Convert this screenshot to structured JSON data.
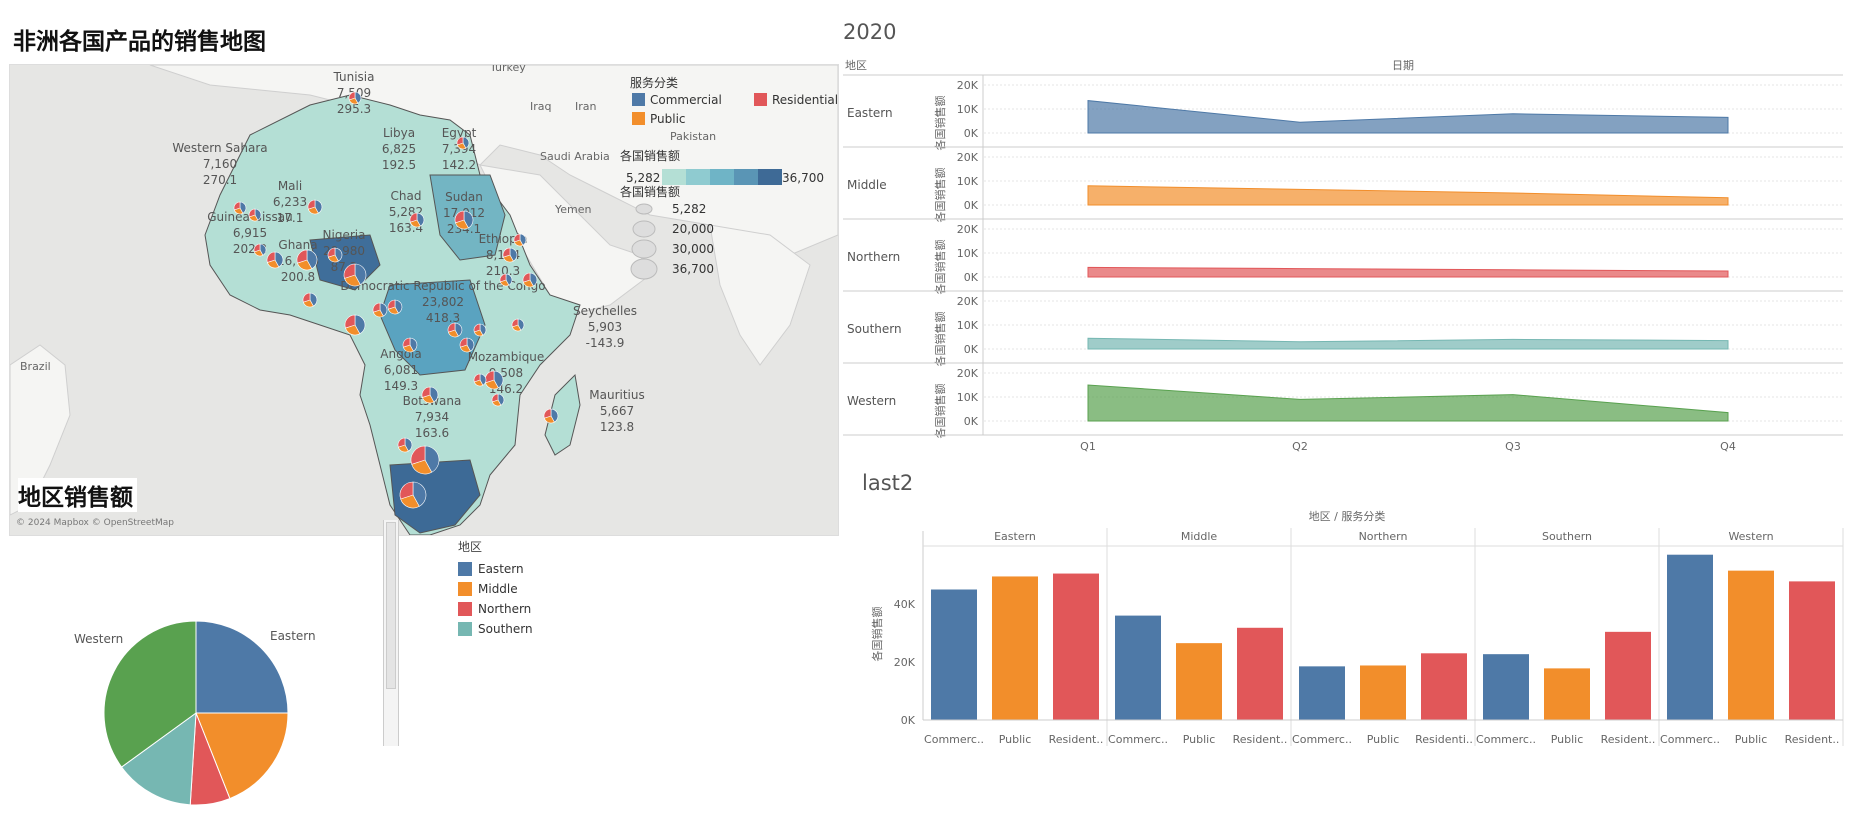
{
  "map_title": "非洲各国产品的销售地图",
  "map": {
    "sea_labels": [
      "Turkey",
      "Iraq",
      "Iran",
      "Saudi Arabia",
      "Yemen",
      "Pakistan",
      "Brazil"
    ],
    "country_labels": [
      {
        "name": "Tunisia",
        "sales": "7,509",
        "profit": "295.3"
      },
      {
        "name": "Libya",
        "sales": "6,825",
        "profit": "192.5"
      },
      {
        "name": "Egypt",
        "sales": "7,394",
        "profit": "142.2"
      },
      {
        "name": "Western Sahara",
        "sales": "7,160",
        "profit": "270.1"
      },
      {
        "name": "Mali",
        "sales": "6,233",
        "profit": "17.1"
      },
      {
        "name": "Chad",
        "sales": "5,282",
        "profit": "163.4"
      },
      {
        "name": "Sudan",
        "sales": "17,012",
        "profit": "234.1"
      },
      {
        "name": "Guinea-Bissau",
        "sales": "6,915",
        "profit": "202.2"
      },
      {
        "name": "Nigeria",
        "sales": "29,980",
        "profit": "87.2"
      },
      {
        "name": "Ghana",
        "sales": "16,086",
        "profit": "200.8"
      },
      {
        "name": "Ethiopia",
        "sales": "8,194",
        "profit": "210.3"
      },
      {
        "name": "Democratic Republic of the Congo",
        "sales": "23,802",
        "profit": "418.3"
      },
      {
        "name": "Seychelles",
        "sales": "5,903",
        "profit": "-143.9"
      },
      {
        "name": "Angola",
        "sales": "6,081",
        "profit": "149.3"
      },
      {
        "name": "Mozambique",
        "sales": "9,508",
        "profit": "146.2"
      },
      {
        "name": "Mauritius",
        "sales": "5,667",
        "profit": "123.8"
      },
      {
        "name": "Botswana",
        "sales": "7,934",
        "profit": "163.6"
      }
    ],
    "legend_service_title": "服务分类",
    "legend_service": [
      {
        "name": "Commercial",
        "color": "#4e79a7"
      },
      {
        "name": "Residential",
        "color": "#e15759"
      },
      {
        "name": "Public",
        "color": "#f28e2b"
      }
    ],
    "legend_color_title": "各国销售额",
    "legend_color_min": "5,282",
    "legend_color_max": "36,700",
    "legend_size_title": "各国销售额",
    "legend_size": [
      "5,282",
      "20,000",
      "30,000",
      "36,700"
    ],
    "copyright": "© 2024 Mapbox © OpenStreetMap"
  },
  "pie_title": "地区销售额",
  "pie_legend_title": "地区",
  "pie_legend": [
    {
      "name": "Eastern",
      "color": "#4e79a7"
    },
    {
      "name": "Middle",
      "color": "#f28e2b"
    },
    {
      "name": "Northern",
      "color": "#e15759"
    },
    {
      "name": "Southern",
      "color": "#76b7b2"
    }
  ],
  "area_title": "2020",
  "area_header_left": "地区",
  "area_header_top": "日期",
  "bar_title": "last2",
  "bar_header_top": "地区 / 服务分类",
  "chart_data": [
    {
      "type": "area",
      "title": "2020",
      "xlabel": "日期",
      "ylabel": "各国销售额",
      "categories": [
        "Q1",
        "Q2",
        "Q3",
        "Q4"
      ],
      "yticks": [
        "20K",
        "10K",
        "0K"
      ],
      "ylim": [
        0,
        20000
      ],
      "series": [
        {
          "name": "Eastern",
          "color": "#4e79a7",
          "values": [
            13500,
            4500,
            8000,
            6500
          ]
        },
        {
          "name": "Middle",
          "color": "#f28e2b",
          "values": [
            8000,
            6500,
            5000,
            3000
          ]
        },
        {
          "name": "Northern",
          "color": "#e15759",
          "values": [
            4000,
            3500,
            3000,
            2500
          ]
        },
        {
          "name": "Southern",
          "color": "#76b7b2",
          "values": [
            4500,
            3000,
            4000,
            3500
          ]
        },
        {
          "name": "Western",
          "color": "#59a14f",
          "values": [
            15000,
            9000,
            11000,
            3500
          ]
        }
      ]
    },
    {
      "type": "bar",
      "title": "last2",
      "xlabel": "地区 / 服务分类",
      "ylabel": "各国销售额",
      "groups": [
        "Eastern",
        "Middle",
        "Northern",
        "Southern",
        "Western"
      ],
      "categories": [
        "Commerc..",
        "Public",
        "Resident.."
      ],
      "category_labels": [
        [
          "Commerc..",
          "Public",
          "Resident.."
        ],
        [
          "Commerc..",
          "Public",
          "Resident.."
        ],
        [
          "Commerc..",
          "Public",
          "Residenti.."
        ],
        [
          "Commerc..",
          "Public",
          "Resident.."
        ],
        [
          "Commerc..",
          "Public",
          "Resident.."
        ]
      ],
      "colors": [
        "#4e79a7",
        "#f28e2b",
        "#e15759"
      ],
      "values": [
        [
          45000,
          49500,
          50500
        ],
        [
          36000,
          26500,
          31800
        ],
        [
          18500,
          18800,
          23000
        ],
        [
          22700,
          17800,
          30400
        ],
        [
          57000,
          51500,
          47800
        ]
      ],
      "yticks": [
        "40K",
        "20K",
        "0K"
      ],
      "ylim": [
        0,
        60000
      ]
    },
    {
      "type": "pie",
      "title": "地区销售额",
      "labels": [
        "Eastern",
        "Middle",
        "Northern",
        "Southern",
        "Western"
      ],
      "colors": [
        "#4e79a7",
        "#f28e2b",
        "#e15759",
        "#76b7b2",
        "#59a14f"
      ],
      "values": [
        25,
        19,
        7,
        14,
        35
      ],
      "visible_labels": [
        "Western",
        "Eastern"
      ]
    }
  ]
}
